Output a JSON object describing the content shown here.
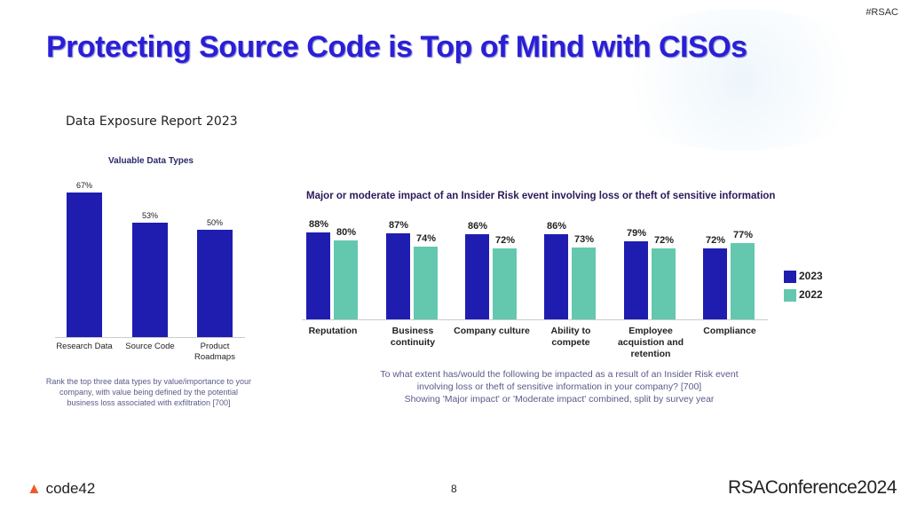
{
  "slide": {
    "hashtag": "#RSAC",
    "title": "Protecting Source Code is Top of Mind with CISOs",
    "subtitle": "Data Exposure Report 2023",
    "page_number": "8",
    "logo_left": "code42",
    "logo_right": "RSAConference2024"
  },
  "colors": {
    "title": "#2a1fd6",
    "series_2023": "#1f1db0",
    "series_2022": "#64c8ae"
  },
  "chart_data": [
    {
      "type": "bar",
      "title": "Valuable Data Types",
      "categories": [
        "Research Data",
        "Source Code",
        "Product Roadmaps"
      ],
      "values": [
        67,
        53,
        50
      ],
      "data_labels": [
        "67%",
        "53%",
        "50%"
      ],
      "note": "Rank the top three data types by value/importance to your company, with value being defined by the potential business loss associated with exfiltration [700]",
      "ylim": [
        0,
        100
      ],
      "grid": false
    },
    {
      "type": "bar",
      "title": "Major or moderate impact of an Insider Risk event involving loss or theft of sensitive information",
      "categories": [
        "Reputation",
        "Business continuity",
        "Company culture",
        "Ability to compete",
        "Employee acquistion and retention",
        "Compliance"
      ],
      "series": [
        {
          "name": "2023",
          "values": [
            88,
            87,
            86,
            86,
            79,
            72
          ]
        },
        {
          "name": "2022",
          "values": [
            80,
            74,
            72,
            73,
            72,
            77
          ]
        }
      ],
      "legend": "right",
      "ylim": [
        0,
        100
      ],
      "grid": false,
      "note": [
        "To what extent has/would the following be impacted as a result of an Insider Risk event",
        "involving loss or theft of sensitive information in your company? [700]",
        "Showing 'Major impact' or 'Moderate impact' combined, split by survey year"
      ]
    }
  ]
}
